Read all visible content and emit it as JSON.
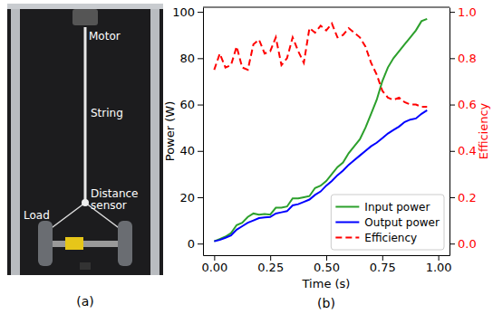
{
  "figure": {
    "captions": [
      "(a)",
      "(b)"
    ],
    "photo_labels": [
      "Motor",
      "String",
      "Load",
      "Distance sensor"
    ]
  },
  "chart_data": {
    "type": "line",
    "xlabel": "Time (s)",
    "ylabel": "Power (W)",
    "y2label": "Efficiency",
    "x": [
      0,
      0.025,
      0.05,
      0.075,
      0.1,
      0.125,
      0.15,
      0.175,
      0.2,
      0.225,
      0.25,
      0.275,
      0.3,
      0.325,
      0.35,
      0.375,
      0.4,
      0.425,
      0.45,
      0.475,
      0.5,
      0.525,
      0.55,
      0.575,
      0.6,
      0.625,
      0.65,
      0.675,
      0.7,
      0.725,
      0.75,
      0.775,
      0.8,
      0.825,
      0.85,
      0.875,
      0.9,
      0.925,
      0.95
    ],
    "series": [
      {
        "name": "Input power",
        "color": "#2ca02c",
        "line_style": "solid",
        "values": [
          1,
          2,
          3,
          4.5,
          8,
          9,
          11.5,
          13,
          12.5,
          12.8,
          12.5,
          15.5,
          15.5,
          16,
          19.5,
          19.5,
          20,
          20.5,
          24,
          25,
          27,
          30,
          33,
          35,
          39,
          42,
          45,
          50,
          56,
          62,
          70,
          76,
          80,
          83,
          86,
          89,
          92,
          96,
          97
        ]
      },
      {
        "name": "Output power",
        "color": "#0000ff",
        "line_style": "solid",
        "values": [
          1,
          1.6,
          2.5,
          3.5,
          6,
          7.5,
          9,
          10,
          11,
          11.3,
          11.5,
          13,
          13.5,
          14,
          16.5,
          17,
          18,
          19,
          21,
          22.5,
          25,
          27,
          29.5,
          31.5,
          34,
          36,
          38,
          40,
          42,
          43.5,
          45.5,
          47.5,
          49,
          50.5,
          52.5,
          53.5,
          54,
          56,
          57.5
        ]
      },
      {
        "name": "Efficiency",
        "color": "#ff0000",
        "line_style": "dashed",
        "axis": "y2",
        "values": [
          0.75,
          0.82,
          0.76,
          0.77,
          0.85,
          0.76,
          0.75,
          0.86,
          0.88,
          0.82,
          0.83,
          0.89,
          0.77,
          0.8,
          0.89,
          0.83,
          0.78,
          0.93,
          0.91,
          0.94,
          0.92,
          0.95,
          0.89,
          0.9,
          0.93,
          0.91,
          0.89,
          0.85,
          0.78,
          0.73,
          0.66,
          0.63,
          0.62,
          0.63,
          0.61,
          0.6,
          0.6,
          0.59,
          0.59
        ]
      }
    ],
    "xlim": [
      -0.05,
      1.05
    ],
    "xticks": [
      {
        "value": 0,
        "label": "0.00"
      },
      {
        "value": 0.25,
        "label": "0.25"
      },
      {
        "value": 0.5,
        "label": "0.50"
      },
      {
        "value": 0.75,
        "label": "0.75"
      },
      {
        "value": 1,
        "label": "1.00"
      }
    ],
    "ylim": [
      -5,
      102
    ],
    "yticks": [
      0,
      20,
      40,
      60,
      80,
      100
    ],
    "y2lim": [
      -0.05,
      1.02
    ],
    "y2ticks": [
      {
        "value": 0,
        "label": "0.0"
      },
      {
        "value": 0.2,
        "label": "0.2"
      },
      {
        "value": 0.4,
        "label": "0.4"
      },
      {
        "value": 0.6,
        "label": "0.6"
      },
      {
        "value": 0.8,
        "label": "0.8"
      },
      {
        "value": 1,
        "label": "1.0"
      }
    ],
    "legend": "lower right"
  }
}
